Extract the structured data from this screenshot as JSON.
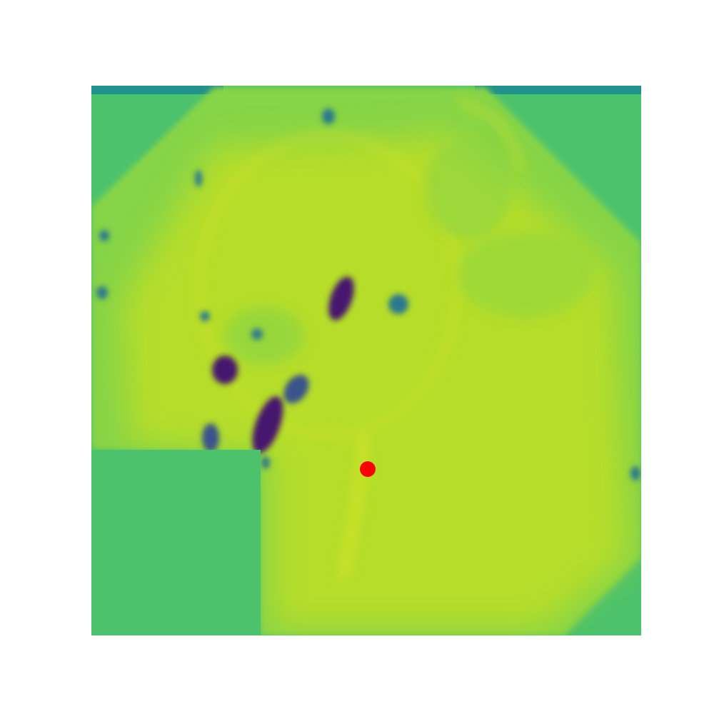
{
  "image": {
    "kind": "heatmap",
    "colormap": "viridis",
    "colors": {
      "background": "#ffffff",
      "outside_region": "#4cc26c",
      "field_high": "#b5dd2b",
      "field_mid": "#86d447",
      "field_peak": "#d9e628",
      "top_band": "#21918c",
      "low_dark": "#46186e",
      "low_mid": "#3b528b",
      "low_teal": "#2a788e"
    }
  },
  "marker": {
    "shape": "circle",
    "color": "#ff0000"
  }
}
